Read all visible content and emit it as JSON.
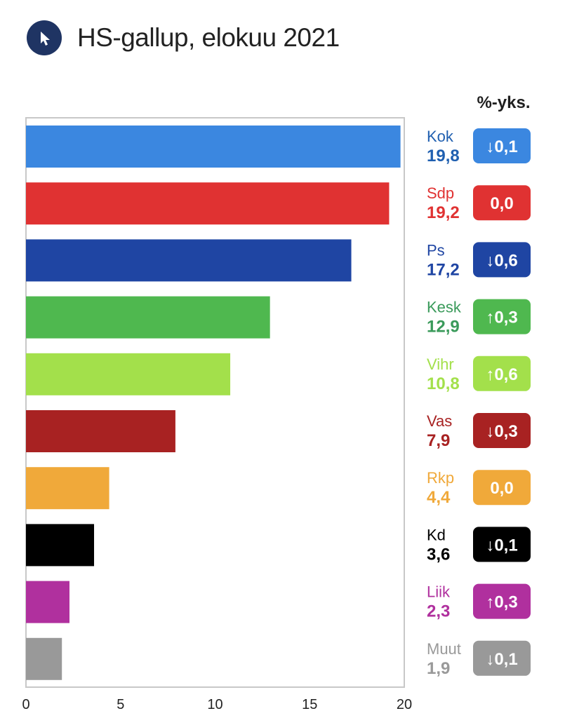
{
  "header": {
    "title": "HS-gallup, elokuu 2021",
    "logo_icon": "cursor-arrow-icon",
    "logo_color": "#1f3463"
  },
  "change_header": "%-yks.",
  "chart_data": {
    "type": "bar",
    "orientation": "horizontal",
    "title": "HS-gallup, elokuu 2021",
    "xlim": [
      0,
      20
    ],
    "x_ticks": [
      "0",
      "5",
      "10",
      "15",
      "20"
    ],
    "grid": false,
    "categories": [
      "Kok",
      "Sdp",
      "Ps",
      "Kesk",
      "Vihr",
      "Vas",
      "Rkp",
      "Kd",
      "Liik",
      "Muut"
    ],
    "values": [
      19.8,
      19.2,
      17.2,
      12.9,
      10.8,
      7.9,
      4.4,
      3.6,
      2.3,
      1.9
    ],
    "value_labels": [
      "19,8",
      "19,2",
      "17,2",
      "12,9",
      "10,8",
      "7,9",
      "4,4",
      "3,6",
      "2,3",
      "1,9"
    ],
    "change_header": "%-yks.",
    "changes": [
      -0.1,
      0.0,
      -0.6,
      0.3,
      0.6,
      -0.3,
      0.0,
      -0.1,
      0.3,
      -0.1
    ],
    "change_labels": [
      "↓0,1",
      "0,0",
      "↓0,6",
      "↑0,3",
      "↑0,6",
      "↓0,3",
      "0,0",
      "↓0,1",
      "↑0,3",
      "↓0,1"
    ],
    "colors": [
      "#3b87e0",
      "#e03232",
      "#1f45a3",
      "#4fb84f",
      "#a3e04b",
      "#a82222",
      "#f0a93a",
      "#000000",
      "#b0309e",
      "#999999"
    ],
    "label_colors": [
      "#1f5fb0",
      "#e03232",
      "#1f45a3",
      "#3a9a5a",
      "#a3e04b",
      "#a82222",
      "#f0a93a",
      "#000000",
      "#b0309e",
      "#999999"
    ]
  }
}
